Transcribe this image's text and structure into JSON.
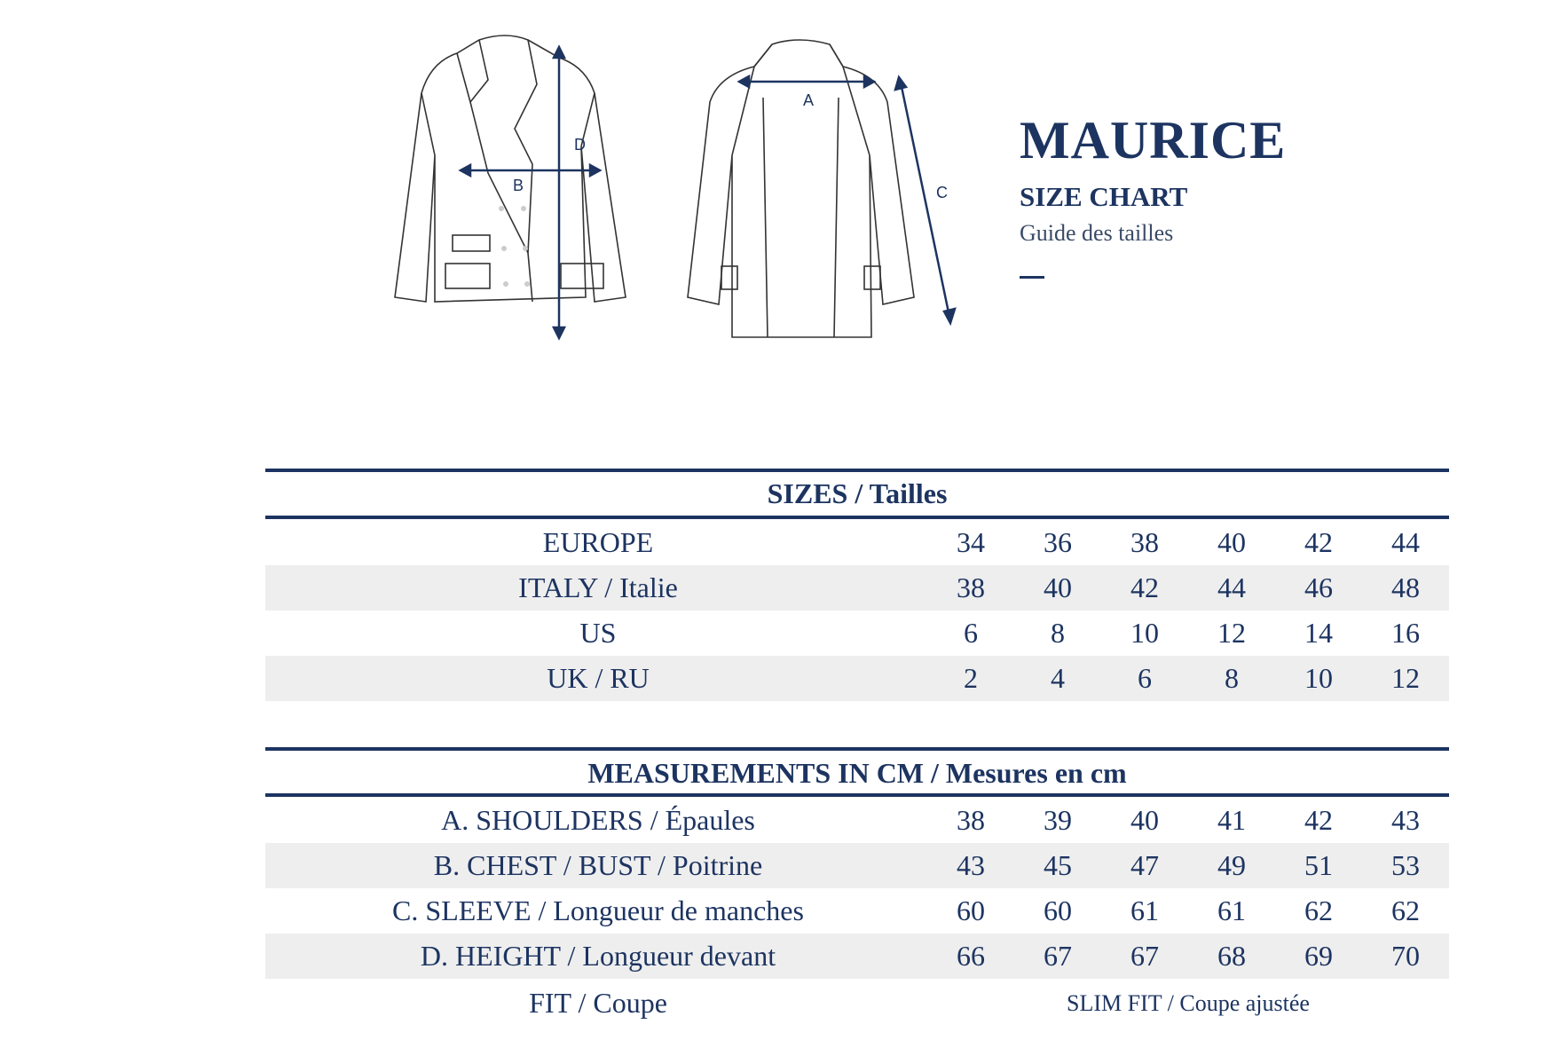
{
  "header": {
    "title": "MAURICE",
    "subtitle": "SIZE CHART",
    "subtitle_fr": "Guide des tailles"
  },
  "diagram": {
    "labels": [
      "A",
      "B",
      "C",
      "D"
    ]
  },
  "colors": {
    "navy": "#1d3461",
    "row_shade": "#eeeeee"
  },
  "sizes": {
    "heading": "SIZES / Tailles",
    "rows": [
      {
        "label": "EUROPE",
        "values": [
          "34",
          "36",
          "38",
          "40",
          "42",
          "44"
        ]
      },
      {
        "label": "ITALY / Italie",
        "values": [
          "38",
          "40",
          "42",
          "44",
          "46",
          "48"
        ]
      },
      {
        "label": "US",
        "values": [
          "6",
          "8",
          "10",
          "12",
          "14",
          "16"
        ]
      },
      {
        "label": "UK / RU",
        "values": [
          "2",
          "4",
          "6",
          "8",
          "10",
          "12"
        ]
      }
    ]
  },
  "measurements": {
    "heading": "MEASUREMENTS IN CM / Mesures en cm",
    "rows": [
      {
        "label": "A. SHOULDERS / Épaules",
        "values": [
          "38",
          "39",
          "40",
          "41",
          "42",
          "43"
        ]
      },
      {
        "label": "B. CHEST / BUST / Poitrine",
        "values": [
          "43",
          "45",
          "47",
          "49",
          "51",
          "53"
        ]
      },
      {
        "label": "C. SLEEVE / Longueur de manches",
        "values": [
          "60",
          "60",
          "61",
          "61",
          "62",
          "62"
        ]
      },
      {
        "label": "D. HEIGHT / Longueur devant",
        "values": [
          "66",
          "67",
          "67",
          "68",
          "69",
          "70"
        ]
      }
    ],
    "fit": {
      "label": "FIT / Coupe",
      "value": "SLIM FIT / Coupe ajustée"
    }
  }
}
